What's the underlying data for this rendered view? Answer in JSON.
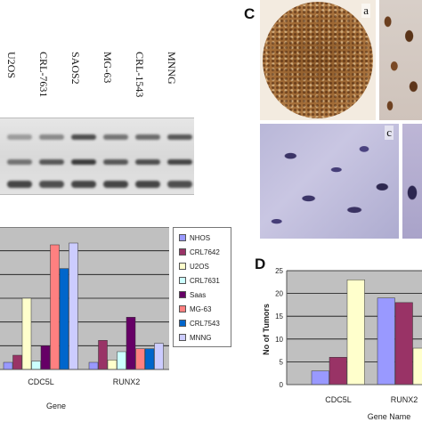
{
  "blot": {
    "lanes": [
      "U2OS",
      "CRL-7631",
      "SAOS2",
      "MG-63",
      "CRL-1543",
      "MNNG"
    ]
  },
  "panel_c": {
    "letter": "C",
    "subpanels": [
      "a",
      "c"
    ]
  },
  "panel_d": {
    "letter": "D"
  },
  "colors": {
    "NHOS": "#9999ff",
    "CRL7642": "#993366",
    "U2OS": "#ffffcc",
    "CRL7631": "#ccffff",
    "Saos": "#660066",
    "MG-63": "#ff8080",
    "CRL7543": "#0066cc",
    "MNNG": "#ccccff"
  },
  "chart_data": [
    {
      "type": "bar",
      "categories": [
        "CDC5L",
        "RUNX2"
      ],
      "xlabel": "Gene",
      "legend_position": "right",
      "series": [
        {
          "name": "NHOS",
          "values": [
            1.2,
            1.2
          ]
        },
        {
          "name": "CRL7642",
          "values": [
            2.4,
            4.9
          ]
        },
        {
          "name": "U2OS",
          "values": [
            12.0,
            1.6
          ]
        },
        {
          "name": "CRL7631",
          "values": [
            1.4,
            3.0
          ]
        },
        {
          "name": "Saas",
          "values": [
            4.0,
            8.8
          ]
        },
        {
          "name": "MG-63",
          "values": [
            21.0,
            3.5
          ]
        },
        {
          "name": "CRL7543",
          "values": [
            17.0,
            3.5
          ]
        },
        {
          "name": "MNNG",
          "values": [
            21.3,
            4.4
          ]
        }
      ]
    },
    {
      "type": "bar",
      "categories": [
        "CDC5L",
        "RUNX2"
      ],
      "xlabel": "Gene Name",
      "ylabel": "No of Tumors",
      "ylim": [
        0,
        25
      ],
      "yticks": [
        0,
        5,
        10,
        15,
        20,
        25
      ],
      "series": [
        {
          "values": [
            3,
            19
          ]
        },
        {
          "values": [
            6,
            18
          ]
        },
        {
          "values": [
            23,
            8
          ]
        }
      ]
    }
  ]
}
